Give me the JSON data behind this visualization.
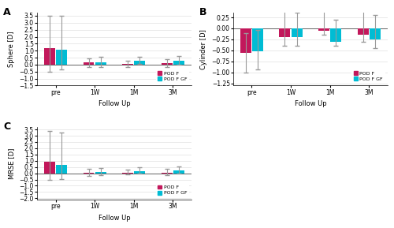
{
  "categories": [
    "pre",
    "1W",
    "1M",
    "3M"
  ],
  "color_podf": "#C2185B",
  "color_podfgf": "#00BCD4",
  "legend_labels": [
    "POD F",
    "POD F GF"
  ],
  "sphere": {
    "podf": {
      "mean": [
        1.2,
        0.15,
        0.05,
        0.1
      ],
      "err_low": [
        1.7,
        0.35,
        0.2,
        0.25
      ],
      "err_high": [
        2.3,
        0.3,
        0.25,
        0.3
      ]
    },
    "podfgf": {
      "mean": [
        1.05,
        0.15,
        0.25,
        0.25
      ],
      "err_low": [
        1.4,
        0.3,
        0.2,
        0.25
      ],
      "err_high": [
        2.45,
        0.4,
        0.3,
        0.35
      ]
    }
  },
  "cylinder": {
    "podf": {
      "mean": [
        -0.55,
        -0.2,
        -0.05,
        -0.15
      ],
      "err_low": [
        0.45,
        0.2,
        0.1,
        0.15
      ],
      "err_high": [
        0.45,
        0.6,
        0.55,
        0.6
      ]
    },
    "podfgf": {
      "mean": [
        -0.52,
        -0.2,
        -0.3,
        -0.25
      ],
      "err_low": [
        0.42,
        0.2,
        0.1,
        0.2
      ],
      "err_high": [
        0.48,
        0.55,
        0.5,
        0.55
      ]
    }
  },
  "mrse": {
    "podf": {
      "mean": [
        0.95,
        0.05,
        0.05,
        0.05
      ],
      "err_low": [
        1.5,
        0.25,
        0.15,
        0.2
      ],
      "err_high": [
        2.45,
        0.3,
        0.25,
        0.3
      ]
    },
    "podfgf": {
      "mean": [
        0.7,
        0.1,
        0.15,
        0.2
      ],
      "err_low": [
        1.15,
        0.25,
        0.15,
        0.2
      ],
      "err_high": [
        2.55,
        0.3,
        0.3,
        0.35
      ]
    }
  },
  "sphere_ylim": [
    -1.5,
    3.7
  ],
  "cylinder_ylim": [
    -1.3,
    0.35
  ],
  "mrse_ylim": [
    -2.1,
    3.7
  ],
  "sphere_yticks": [
    -1.5,
    -1.0,
    -0.5,
    0.0,
    0.5,
    1.0,
    1.5,
    2.0,
    2.5,
    3.0,
    3.5
  ],
  "cylinder_yticks": [
    -1.25,
    -1.0,
    -0.75,
    -0.5,
    -0.25,
    0.0,
    0.25
  ],
  "mrse_yticks": [
    -2.0,
    -1.5,
    -1.0,
    -0.5,
    0.0,
    0.5,
    1.0,
    1.5,
    2.0,
    2.5,
    3.0,
    3.5
  ],
  "bar_width": 0.28,
  "xlabel": "Follow Up",
  "ylabel_sphere": "Sphere [D]",
  "ylabel_cylinder": "Cylinder [D]",
  "ylabel_mrse": "MRSE [D]",
  "background": "#FFFFFF",
  "grid_color": "#E0E0E0",
  "error_color": "#999999",
  "capsize": 2.5
}
